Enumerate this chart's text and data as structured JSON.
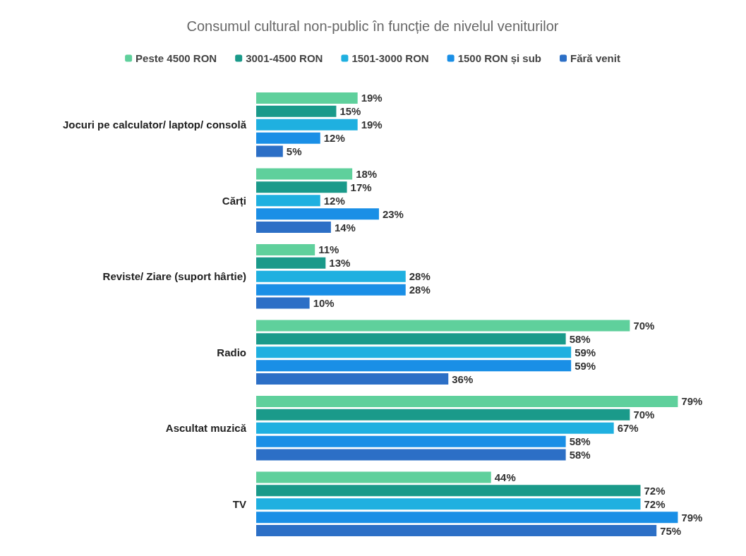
{
  "chart_data": {
    "type": "bar",
    "orientation": "horizontal",
    "title": "Consumul cultural non-public în funcție de nivelul veniturilor",
    "categories": [
      "Jocuri pe calculator/ laptop/ consolă",
      "Cărți",
      "Reviste/ Ziare (suport hârtie)",
      "Radio",
      "Ascultat muzică",
      "TV"
    ],
    "series": [
      {
        "name": "Peste 4500 RON",
        "color": "#5fd09c",
        "values": [
          19,
          18,
          11,
          70,
          79,
          44
        ],
        "value_labels": [
          "19%",
          "18%",
          "11%",
          "70%",
          "79%",
          "44%"
        ]
      },
      {
        "name": "3001-4500 RON",
        "color": "#1a9a8a",
        "values": [
          15,
          17,
          13,
          58,
          70,
          72
        ],
        "value_labels": [
          "15%",
          "17%",
          "13%",
          "58%",
          "70%",
          "72%"
        ]
      },
      {
        "name": "1501-3000 RON",
        "color": "#1fb0e0",
        "values": [
          19,
          12,
          28,
          59,
          67,
          72
        ],
        "value_labels": [
          "19%",
          "12%",
          "28%",
          "59%",
          "67%",
          "72%"
        ]
      },
      {
        "name": "1500 RON și sub",
        "color": "#1a8fe6",
        "values": [
          12,
          23,
          28,
          59,
          58,
          79
        ],
        "value_labels": [
          "12%",
          "23%",
          "28%",
          "59%",
          "58%",
          "79%"
        ]
      },
      {
        "name": "Fără venit",
        "color": "#2c6fc6",
        "values": [
          5,
          14,
          10,
          36,
          58,
          75
        ],
        "value_labels": [
          "5%",
          "14%",
          "10%",
          "36%",
          "58%",
          "75%"
        ]
      }
    ],
    "legend": "top"
  }
}
